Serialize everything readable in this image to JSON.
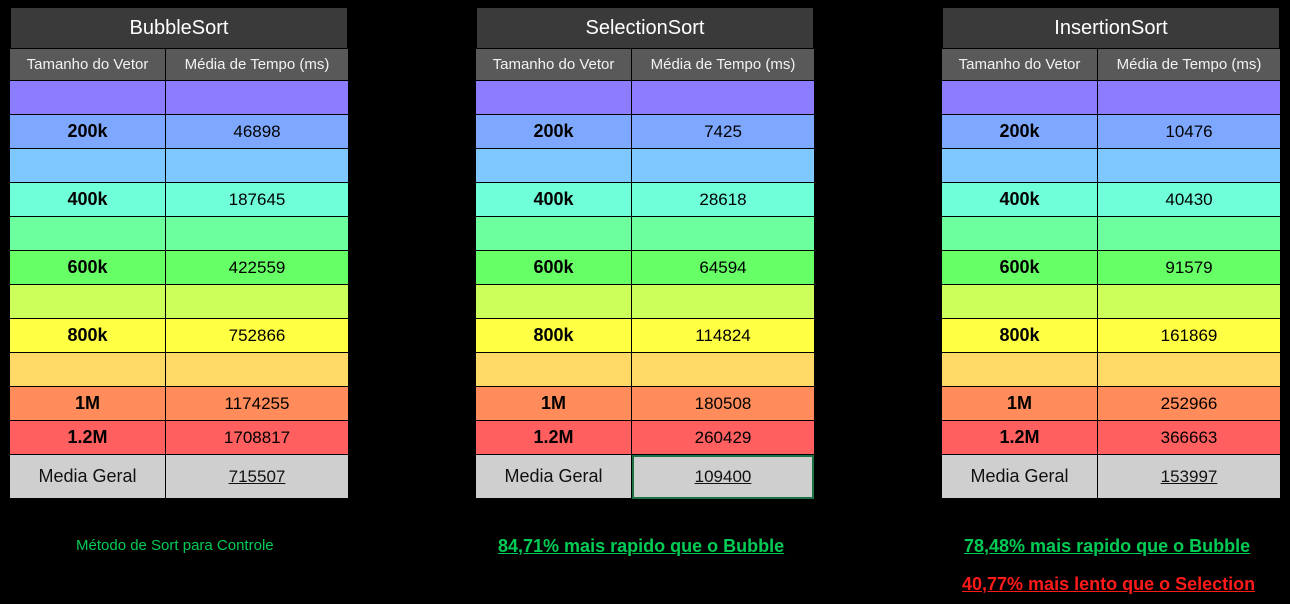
{
  "colors": {
    "title_bg": "#3a3a3a",
    "header_bg": "#595959",
    "footer_bg": "#cfcfcf",
    "rows": [
      "#8c7dff",
      "#7ea8ff",
      "#7fc8ff",
      "#6fffd9",
      "#6bff9d",
      "#66ff66",
      "#cdff5a",
      "#ffff44",
      "#ffd966",
      "#ff8c5a",
      "#ff5f5f"
    ],
    "note_green": "#00cc55",
    "note_red": "#ff1a1a"
  },
  "header": {
    "col1": "Tamanho do Vetor",
    "col2": "Média de Tempo (ms)"
  },
  "tables": [
    {
      "title": "BubbleSort",
      "rows": [
        {
          "size": "",
          "time": ""
        },
        {
          "size": "200k",
          "time": "46898"
        },
        {
          "size": "",
          "time": ""
        },
        {
          "size": "400k",
          "time": "187645"
        },
        {
          "size": "",
          "time": ""
        },
        {
          "size": "600k",
          "time": "422559"
        },
        {
          "size": "",
          "time": ""
        },
        {
          "size": "800k",
          "time": "752866"
        },
        {
          "size": "",
          "time": ""
        },
        {
          "size": "1M",
          "time": "1174255"
        },
        {
          "size": "1.2M",
          "time": "1708817"
        }
      ],
      "footer_label": "Media Geral",
      "footer_value": "715507"
    },
    {
      "title": "SelectionSort",
      "rows": [
        {
          "size": "",
          "time": ""
        },
        {
          "size": "200k",
          "time": "7425"
        },
        {
          "size": "",
          "time": ""
        },
        {
          "size": "400k",
          "time": "28618"
        },
        {
          "size": "",
          "time": ""
        },
        {
          "size": "600k",
          "time": "64594"
        },
        {
          "size": "",
          "time": ""
        },
        {
          "size": "800k",
          "time": "114824"
        },
        {
          "size": "",
          "time": ""
        },
        {
          "size": "1M",
          "time": "180508"
        },
        {
          "size": "1.2M",
          "time": "260429"
        }
      ],
      "footer_label": "Media Geral",
      "footer_value": "109400"
    },
    {
      "title": "InsertionSort",
      "rows": [
        {
          "size": "",
          "time": ""
        },
        {
          "size": "200k",
          "time": "10476"
        },
        {
          "size": "",
          "time": ""
        },
        {
          "size": "400k",
          "time": "40430"
        },
        {
          "size": "",
          "time": ""
        },
        {
          "size": "600k",
          "time": "91579"
        },
        {
          "size": "",
          "time": ""
        },
        {
          "size": "800k",
          "time": "161869"
        },
        {
          "size": "",
          "time": ""
        },
        {
          "size": "1M",
          "time": "252966"
        },
        {
          "size": "1.2M",
          "time": "366663"
        }
      ],
      "footer_label": "Media Geral",
      "footer_value": "153997"
    }
  ],
  "notes": {
    "bubble": "Método de Sort para Controle",
    "selection": "84,71% mais rapido que o Bubble",
    "insertion_1": "78,48% mais rapido que o Bubble",
    "insertion_2": "40,77% mais lento que o Selection"
  }
}
